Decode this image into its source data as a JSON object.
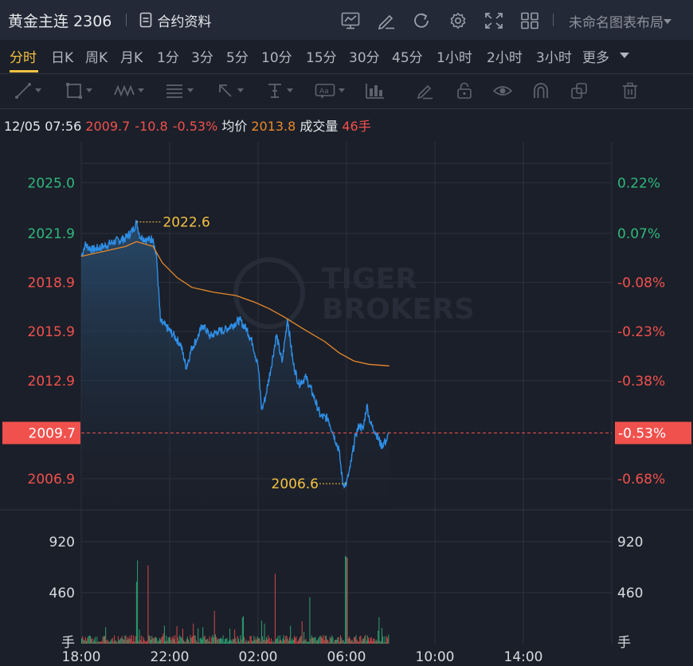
{
  "header": {
    "symbol": "黄金主连 2306",
    "contract_info_label": "合约资料",
    "layout_label": "未命名图表布局",
    "icons": [
      "indicator-icon",
      "draw-icon",
      "refresh-icon",
      "settings-icon",
      "fullscreen-icon",
      "grid-layout-icon"
    ]
  },
  "periods": {
    "items": [
      "分时",
      "日K",
      "周K",
      "月K",
      "1分",
      "3分",
      "5分",
      "10分",
      "15分",
      "30分",
      "45分",
      "1小时",
      "2小时",
      "3小时",
      "更多"
    ],
    "active": "分时"
  },
  "drawing_tools": [
    "line-tool-icon",
    "rectangle-tool-icon",
    "pattern-tool-icon",
    "fib-tool-icon",
    "arrow-tool-icon",
    "measure-tool-icon",
    "text-tool-icon",
    "bar-pattern-tool-icon",
    "pen-icon",
    "lock-icon",
    "eye-icon",
    "magnet-icon",
    "clone-icon",
    "trash-icon"
  ],
  "quote": {
    "datetime": "12/05 07:56",
    "price": "2009.7",
    "change": "-10.8",
    "change_pct": "-0.53%",
    "avg_label": "均价",
    "avg_value": "2013.8",
    "volume_label": "成交量",
    "volume_value": "46手"
  },
  "watermark": [
    "TIGER",
    "BROKERS"
  ],
  "colors": {
    "up": "#2fb97d",
    "down": "#f0514d",
    "accent": "#f5c242",
    "price_line": "#2e8fe8",
    "avg_line": "#e8892b",
    "background": "#1b1f29"
  },
  "chart_data": {
    "type": "line",
    "x_ticks": [
      "18:00",
      "22:00",
      "02:00",
      "06:00",
      "10:00",
      "14:00"
    ],
    "y_ticks_price": [
      "2025.0",
      "2021.9",
      "2018.9",
      "2015.9",
      "2012.9",
      "2006.9"
    ],
    "y_ticks_pct": [
      "0.22%",
      "0.07%",
      "-0.08%",
      "-0.23%",
      "-0.38%",
      "-0.68%"
    ],
    "current_price_label": "2009.7",
    "current_pct_label": "-0.53%",
    "high_label": "2022.6",
    "low_label": "2006.6",
    "volume_ticks": [
      "920",
      "460"
    ],
    "volume_unit": "手",
    "price_series": [
      [
        "18:00",
        2020.5
      ],
      [
        "18:10",
        2021.2
      ],
      [
        "18:30",
        2020.9
      ],
      [
        "19:00",
        2021.1
      ],
      [
        "19:30",
        2021.4
      ],
      [
        "20:00",
        2021.6
      ],
      [
        "20:20",
        2022.1
      ],
      [
        "20:30",
        2022.6
      ],
      [
        "20:40",
        2021.7
      ],
      [
        "21:00",
        2021.5
      ],
      [
        "21:15",
        2021.6
      ],
      [
        "21:25",
        2020.3
      ],
      [
        "21:35",
        2016.5
      ],
      [
        "21:50",
        2016.2
      ],
      [
        "22:10",
        2015.7
      ],
      [
        "22:30",
        2015.1
      ],
      [
        "22:45",
        2013.7
      ],
      [
        "23:00",
        2014.9
      ],
      [
        "23:15",
        2015.5
      ],
      [
        "23:30",
        2016.3
      ],
      [
        "23:50",
        2015.6
      ],
      [
        "00:10",
        2015.9
      ],
      [
        "00:30",
        2016.0
      ],
      [
        "00:50",
        2016.3
      ],
      [
        "01:10",
        2016.6
      ],
      [
        "01:30",
        2016.0
      ],
      [
        "01:45",
        2015.2
      ],
      [
        "02:00",
        2013.8
      ],
      [
        "02:10",
        2011.1
      ],
      [
        "02:20",
        2011.9
      ],
      [
        "02:35",
        2013.7
      ],
      [
        "02:50",
        2015.7
      ],
      [
        "03:05",
        2014.0
      ],
      [
        "03:20",
        2016.7
      ],
      [
        "03:35",
        2014.0
      ],
      [
        "03:50",
        2012.7
      ],
      [
        "04:10",
        2013.1
      ],
      [
        "04:30",
        2012.0
      ],
      [
        "04:50",
        2010.7
      ],
      [
        "05:10",
        2010.6
      ],
      [
        "05:25",
        2009.6
      ],
      [
        "05:40",
        2008.6
      ],
      [
        "05:50",
        2006.6
      ],
      [
        "06:00",
        2006.6
      ],
      [
        "06:10",
        2007.6
      ],
      [
        "06:25",
        2009.6
      ],
      [
        "06:35",
        2010.2
      ],
      [
        "06:45",
        2009.9
      ],
      [
        "06:55",
        2011.4
      ],
      [
        "07:05",
        2010.3
      ],
      [
        "07:20",
        2009.7
      ],
      [
        "07:35",
        2008.9
      ],
      [
        "07:50",
        2009.3
      ],
      [
        "07:56",
        2009.7
      ]
    ],
    "avg_series": [
      [
        "18:00",
        2020.5
      ],
      [
        "19:00",
        2020.8
      ],
      [
        "20:00",
        2021.1
      ],
      [
        "20:30",
        2021.4
      ],
      [
        "21:15",
        2021.1
      ],
      [
        "21:40",
        2020.1
      ],
      [
        "22:20",
        2019.2
      ],
      [
        "23:00",
        2018.6
      ],
      [
        "00:00",
        2018.3
      ],
      [
        "01:00",
        2018.1
      ],
      [
        "01:50",
        2017.7
      ],
      [
        "02:30",
        2017.3
      ],
      [
        "03:10",
        2016.8
      ],
      [
        "04:00",
        2016.1
      ],
      [
        "05:00",
        2015.3
      ],
      [
        "05:40",
        2014.6
      ],
      [
        "06:20",
        2014.1
      ],
      [
        "07:00",
        2013.9
      ],
      [
        "07:56",
        2013.8
      ]
    ],
    "ylim": [
      2005.0,
      2027.5
    ],
    "volume_ylim": [
      0,
      1150
    ]
  }
}
